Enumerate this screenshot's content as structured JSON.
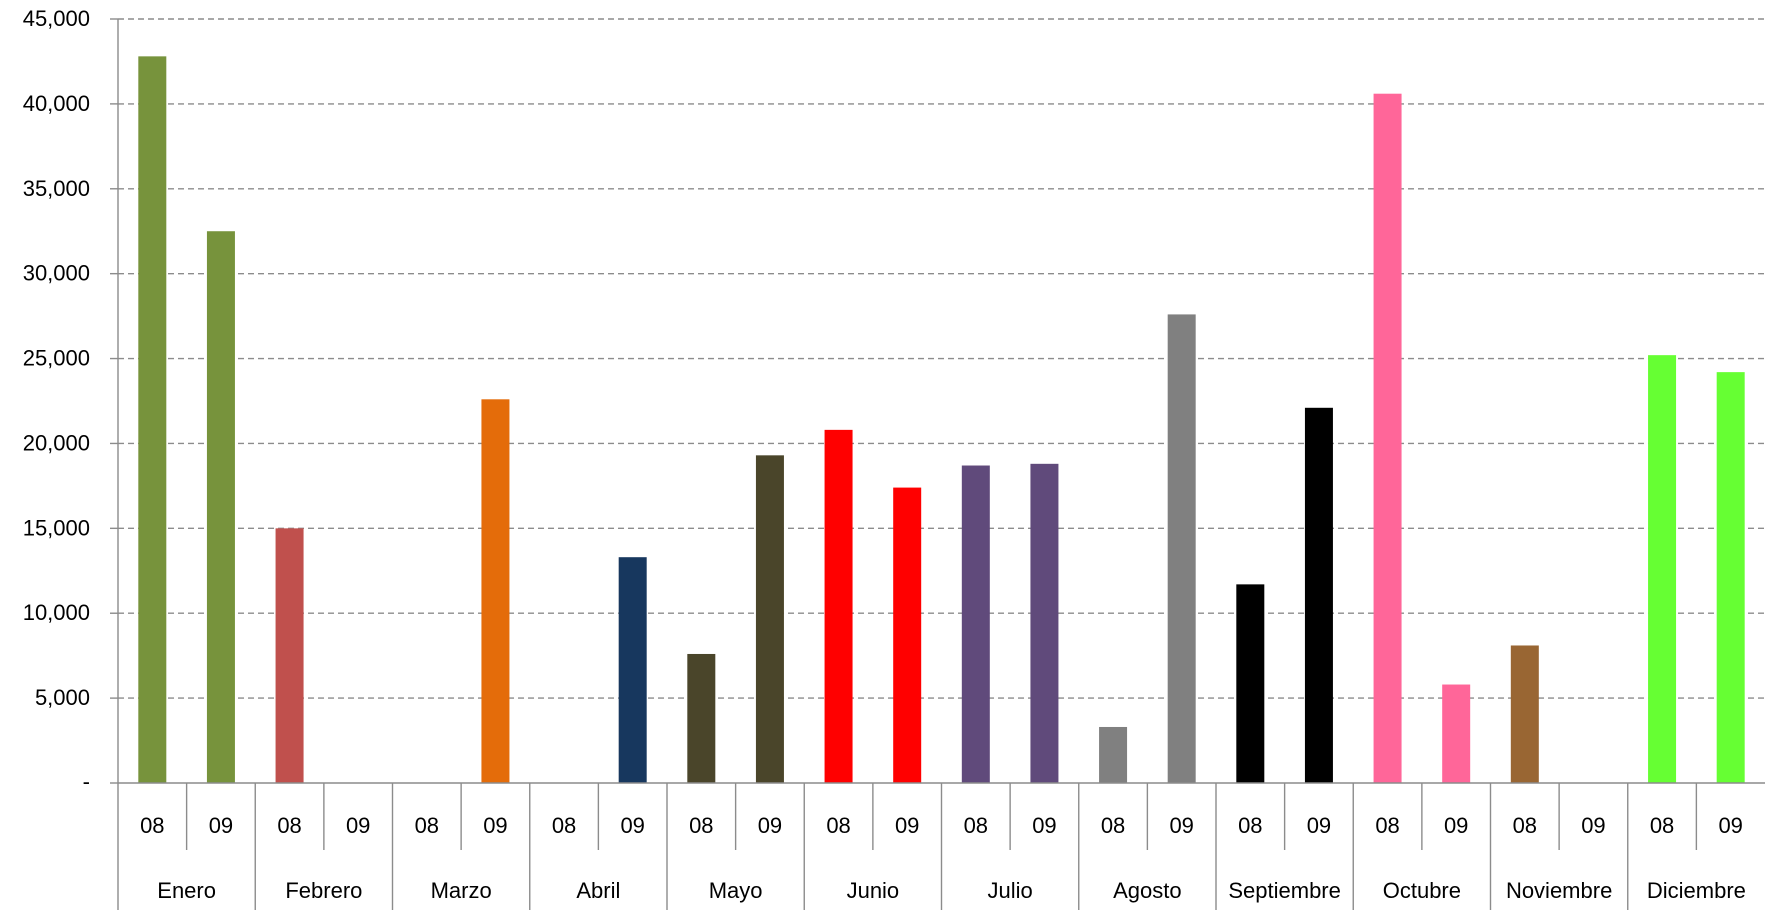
{
  "chart_data": {
    "type": "bar",
    "title": "",
    "xlabel": "",
    "ylabel": "",
    "ylim": [
      0,
      45000
    ],
    "y_ticks": [
      0,
      5000,
      10000,
      15000,
      20000,
      25000,
      30000,
      35000,
      40000,
      45000
    ],
    "y_tick_labels": [
      "-",
      "5,000",
      "10,000",
      "15,000",
      "20,000",
      "25,000",
      "30,000",
      "35,000",
      "40,000",
      "45,000"
    ],
    "grid": "horizontal-dashed",
    "legend": "none",
    "months": [
      {
        "name": "Enero",
        "color": "#77933C",
        "years": [
          {
            "label": "08",
            "value": 42800
          },
          {
            "label": "09",
            "value": 32500
          }
        ]
      },
      {
        "name": "Febrero",
        "color": "#C0504D",
        "years": [
          {
            "label": "08",
            "value": 15000
          },
          {
            "label": "09",
            "value": 0
          }
        ]
      },
      {
        "name": "Marzo",
        "color": "#E46C0A",
        "years": [
          {
            "label": "08",
            "value": 0
          },
          {
            "label": "09",
            "value": 22600
          }
        ]
      },
      {
        "name": "Abril",
        "color": "#17375E",
        "years": [
          {
            "label": "08",
            "value": 0
          },
          {
            "label": "09",
            "value": 13300
          }
        ]
      },
      {
        "name": "Mayo",
        "color": "#4A452A",
        "years": [
          {
            "label": "08",
            "value": 7600
          },
          {
            "label": "09",
            "value": 19300
          }
        ]
      },
      {
        "name": "Junio",
        "color": "#FF0000",
        "years": [
          {
            "label": "08",
            "value": 20800
          },
          {
            "label": "09",
            "value": 17400
          }
        ]
      },
      {
        "name": "Julio",
        "color": "#604A7B",
        "years": [
          {
            "label": "08",
            "value": 18700
          },
          {
            "label": "09",
            "value": 18800
          }
        ]
      },
      {
        "name": "Agosto",
        "color": "#808080",
        "years": [
          {
            "label": "08",
            "value": 3300
          },
          {
            "label": "09",
            "value": 27600
          }
        ]
      },
      {
        "name": "Septiembre",
        "color": "#000000",
        "years": [
          {
            "label": "08",
            "value": 11700
          },
          {
            "label": "09",
            "value": 22100
          }
        ]
      },
      {
        "name": "Octubre",
        "color": "#FF6699",
        "years": [
          {
            "label": "08",
            "value": 40600
          },
          {
            "label": "09",
            "value": 5800
          }
        ]
      },
      {
        "name": "Noviembre",
        "color": "#996633",
        "years": [
          {
            "label": "08",
            "value": 8100
          },
          {
            "label": "09",
            "value": 0
          }
        ]
      },
      {
        "name": "Diciembre",
        "color": "#66FF33",
        "years": [
          {
            "label": "08",
            "value": 25200
          },
          {
            "label": "09",
            "value": 24200
          }
        ]
      }
    ]
  }
}
